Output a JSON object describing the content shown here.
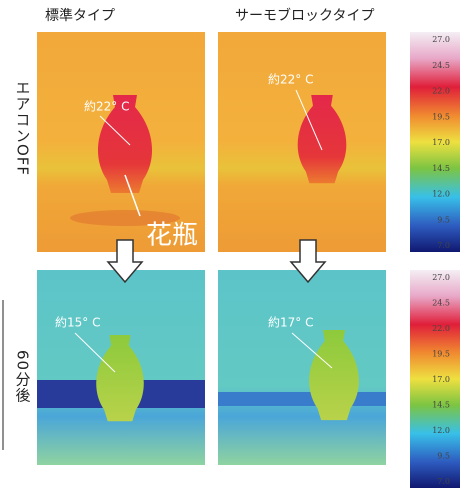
{
  "headers": [
    "標準タイプ",
    "サーモブロックタイプ"
  ],
  "rows": [
    {
      "label": "エアコンOFF",
      "annotations": [
        "約22° C",
        "約22° C"
      ]
    },
    {
      "label": "60分後",
      "annotations": [
        "約15° C",
        "約17° C"
      ]
    }
  ],
  "callout": "花瓶",
  "scale": [
    "27.0",
    "24.5",
    "22.0",
    "19.5",
    "17.0",
    "14.5",
    "12.0",
    "9.5",
    "7.0"
  ]
}
